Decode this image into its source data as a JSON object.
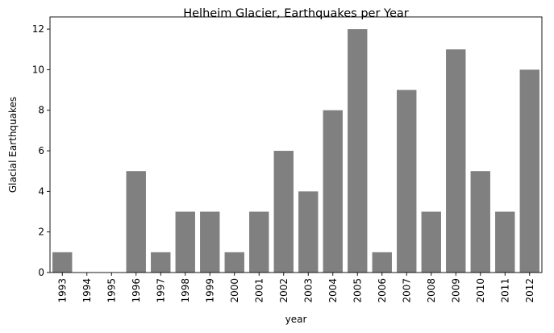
{
  "chart_data": {
    "type": "bar",
    "title": "Helheim Glacier, Earthquakes per Year",
    "xlabel": "year",
    "ylabel": "Glacial Earthquakes",
    "categories": [
      "1993",
      "1994",
      "1995",
      "1996",
      "1997",
      "1998",
      "1999",
      "2000",
      "2001",
      "2002",
      "2003",
      "2004",
      "2005",
      "2006",
      "2007",
      "2008",
      "2009",
      "2010",
      "2011",
      "2012"
    ],
    "values": [
      1,
      0,
      0,
      5,
      1,
      3,
      3,
      1,
      3,
      6,
      4,
      8,
      12,
      1,
      9,
      3,
      11,
      5,
      3,
      10
    ],
    "ylim": [
      0,
      12.6
    ],
    "yticks": [
      0,
      2,
      4,
      6,
      8,
      10,
      12
    ],
    "bar_color": "#808080",
    "grid": false,
    "legend": false
  }
}
